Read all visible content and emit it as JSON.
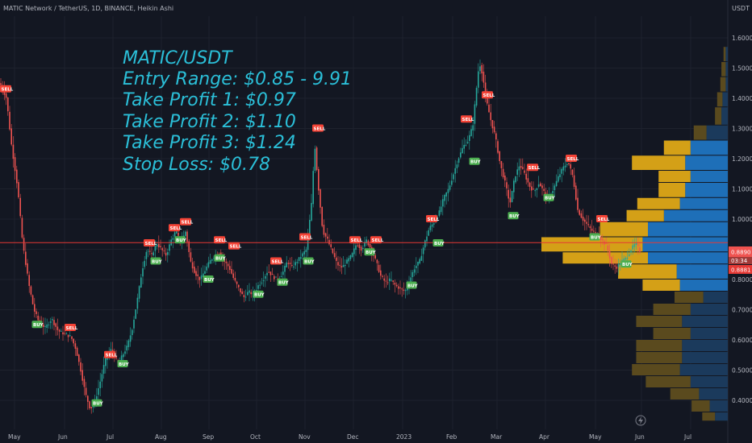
{
  "header": {
    "symbol": "MATIC Network / TetherUS, 1D, BINANCE, Heikin Ashi",
    "currency": "USDT"
  },
  "annotation": [
    "MATIC/USDT",
    "Entry Range: $0.85 - 9.91",
    "Take Profit 1: $0.97",
    "Take Profit 2: $1.10",
    "Take Profit 3: $1.24",
    "Stop Loss: $0.78"
  ],
  "price_labels": {
    "current": "0.8890",
    "countdown": "03:34",
    "line": "0.8881"
  },
  "colors": {
    "background": "#131722",
    "up": "#26a69a",
    "down": "#ef5350",
    "buy": "#4caf50",
    "sell": "#f44336",
    "annotation": "#2bbfd8",
    "vp_bright_orange": "#d4a017",
    "vp_bright_blue": "#1e6fb8",
    "vp_dim_orange": "#5a4a1e",
    "vp_dim_blue": "#1b3a5c",
    "hline": "#e53935"
  },
  "chart_data": {
    "type": "candlestick",
    "title": "MATIC Network / TetherUS, 1D, BINANCE, Heikin Ashi",
    "ylabel": "USDT",
    "ylim": [
      0.33,
      1.62
    ],
    "y_ticks": [
      "0.4000",
      "0.5000",
      "0.6000",
      "0.7000",
      "0.8000",
      "0.9000",
      "1.0000",
      "1.1000",
      "1.2000",
      "1.3000",
      "1.4000",
      "1.5000",
      "1.6000"
    ],
    "x_ticks": [
      "May",
      "Jun",
      "Jul",
      "Aug",
      "Sep",
      "Oct",
      "Nov",
      "Dec",
      "2023",
      "Feb",
      "Mar",
      "Apr",
      "May",
      "Jun",
      "Jul"
    ],
    "horizontal_line": 0.922,
    "path": [
      [
        0,
        1.45
      ],
      [
        8,
        1.4
      ],
      [
        14,
        1.25
      ],
      [
        22,
        1.1
      ],
      [
        28,
        0.92
      ],
      [
        36,
        0.78
      ],
      [
        42,
        0.7
      ],
      [
        48,
        0.66
      ],
      [
        56,
        0.64
      ],
      [
        64,
        0.67
      ],
      [
        72,
        0.63
      ],
      [
        80,
        0.62
      ],
      [
        88,
        0.61
      ],
      [
        94,
        0.57
      ],
      [
        100,
        0.5
      ],
      [
        106,
        0.42
      ],
      [
        112,
        0.37
      ],
      [
        118,
        0.4
      ],
      [
        124,
        0.46
      ],
      [
        130,
        0.53
      ],
      [
        138,
        0.57
      ],
      [
        146,
        0.52
      ],
      [
        152,
        0.55
      ],
      [
        158,
        0.58
      ],
      [
        164,
        0.64
      ],
      [
        170,
        0.73
      ],
      [
        176,
        0.83
      ],
      [
        182,
        0.9
      ],
      [
        188,
        0.88
      ],
      [
        194,
        0.92
      ],
      [
        200,
        0.9
      ],
      [
        206,
        0.88
      ],
      [
        212,
        0.93
      ],
      [
        218,
        0.96
      ],
      [
        224,
        0.92
      ],
      [
        230,
        0.96
      ],
      [
        236,
        0.86
      ],
      [
        242,
        0.82
      ],
      [
        248,
        0.8
      ],
      [
        254,
        0.83
      ],
      [
        260,
        0.86
      ],
      [
        266,
        0.88
      ],
      [
        272,
        0.89
      ],
      [
        278,
        0.86
      ],
      [
        284,
        0.84
      ],
      [
        290,
        0.8
      ],
      [
        296,
        0.77
      ],
      [
        302,
        0.74
      ],
      [
        308,
        0.76
      ],
      [
        314,
        0.75
      ],
      [
        320,
        0.78
      ],
      [
        326,
        0.8
      ],
      [
        332,
        0.83
      ],
      [
        338,
        0.81
      ],
      [
        344,
        0.8
      ],
      [
        350,
        0.82
      ],
      [
        356,
        0.86
      ],
      [
        362,
        0.84
      ],
      [
        368,
        0.86
      ],
      [
        374,
        0.88
      ],
      [
        380,
        0.9
      ],
      [
        386,
        1.05
      ],
      [
        390,
        1.25
      ],
      [
        394,
        1.12
      ],
      [
        400,
        0.96
      ],
      [
        406,
        0.93
      ],
      [
        412,
        0.89
      ],
      [
        418,
        0.85
      ],
      [
        424,
        0.84
      ],
      [
        430,
        0.86
      ],
      [
        436,
        0.88
      ],
      [
        442,
        0.92
      ],
      [
        448,
        0.9
      ],
      [
        454,
        0.93
      ],
      [
        460,
        0.9
      ],
      [
        466,
        0.86
      ],
      [
        472,
        0.81
      ],
      [
        478,
        0.79
      ],
      [
        484,
        0.8
      ],
      [
        490,
        0.78
      ],
      [
        496,
        0.77
      ],
      [
        502,
        0.76
      ],
      [
        508,
        0.8
      ],
      [
        514,
        0.84
      ],
      [
        520,
        0.86
      ],
      [
        526,
        0.92
      ],
      [
        532,
        0.97
      ],
      [
        538,
        0.99
      ],
      [
        544,
        1.02
      ],
      [
        550,
        1.07
      ],
      [
        556,
        1.1
      ],
      [
        562,
        1.15
      ],
      [
        568,
        1.2
      ],
      [
        574,
        1.24
      ],
      [
        580,
        1.26
      ],
      [
        586,
        1.31
      ],
      [
        590,
        1.42
      ],
      [
        594,
        1.52
      ],
      [
        598,
        1.48
      ],
      [
        602,
        1.4
      ],
      [
        608,
        1.33
      ],
      [
        614,
        1.27
      ],
      [
        620,
        1.18
      ],
      [
        626,
        1.12
      ],
      [
        632,
        1.05
      ],
      [
        638,
        1.14
      ],
      [
        644,
        1.18
      ],
      [
        650,
        1.15
      ],
      [
        656,
        1.11
      ],
      [
        662,
        1.09
      ],
      [
        668,
        1.12
      ],
      [
        674,
        1.09
      ],
      [
        680,
        1.07
      ],
      [
        686,
        1.1
      ],
      [
        692,
        1.14
      ],
      [
        698,
        1.17
      ],
      [
        704,
        1.19
      ],
      [
        710,
        1.14
      ],
      [
        716,
        1.03
      ],
      [
        722,
        1.0
      ],
      [
        728,
        0.98
      ],
      [
        734,
        0.96
      ],
      [
        740,
        0.95
      ],
      [
        746,
        0.93
      ],
      [
        752,
        0.91
      ],
      [
        758,
        0.85
      ],
      [
        764,
        0.84
      ],
      [
        770,
        0.86
      ],
      [
        776,
        0.87
      ],
      [
        782,
        0.9
      ],
      [
        788,
        0.92
      ],
      [
        794,
        0.89
      ]
    ],
    "signals": [
      {
        "label": "SELL",
        "x": 4,
        "y": 1.43
      },
      {
        "label": "BUY",
        "x": 46,
        "y": 0.65
      },
      {
        "label": "SELL",
        "x": 87,
        "y": 0.64
      },
      {
        "label": "SELL",
        "x": 136,
        "y": 0.55
      },
      {
        "label": "BUY",
        "x": 120,
        "y": 0.39
      },
      {
        "label": "BUY",
        "x": 152,
        "y": 0.52
      },
      {
        "label": "BUY",
        "x": 193,
        "y": 0.86
      },
      {
        "label": "SELL",
        "x": 185,
        "y": 0.92
      },
      {
        "label": "SELL",
        "x": 216,
        "y": 0.97
      },
      {
        "label": "SELL",
        "x": 230,
        "y": 0.99
      },
      {
        "label": "BUY",
        "x": 223,
        "y": 0.93
      },
      {
        "label": "BUY",
        "x": 258,
        "y": 0.8
      },
      {
        "label": "SELL",
        "x": 272,
        "y": 0.93
      },
      {
        "label": "SELL",
        "x": 290,
        "y": 0.91
      },
      {
        "label": "BUY",
        "x": 272,
        "y": 0.87
      },
      {
        "label": "BUY",
        "x": 320,
        "y": 0.75
      },
      {
        "label": "SELL",
        "x": 342,
        "y": 0.86
      },
      {
        "label": "BUY",
        "x": 350,
        "y": 0.79
      },
      {
        "label": "BUY",
        "x": 382,
        "y": 0.86
      },
      {
        "label": "SELL",
        "x": 378,
        "y": 0.94
      },
      {
        "label": "SELL",
        "x": 394,
        "y": 1.3
      },
      {
        "label": "SELL",
        "x": 440,
        "y": 0.93
      },
      {
        "label": "SELL",
        "x": 466,
        "y": 0.93
      },
      {
        "label": "BUY",
        "x": 458,
        "y": 0.89
      },
      {
        "label": "BUY",
        "x": 510,
        "y": 0.78
      },
      {
        "label": "SELL",
        "x": 535,
        "y": 1.0
      },
      {
        "label": "BUY",
        "x": 543,
        "y": 0.92
      },
      {
        "label": "SELL",
        "x": 578,
        "y": 1.33
      },
      {
        "label": "BUY",
        "x": 588,
        "y": 1.19
      },
      {
        "label": "SELL",
        "x": 604,
        "y": 1.41
      },
      {
        "label": "BUY",
        "x": 636,
        "y": 1.01
      },
      {
        "label": "SELL",
        "x": 660,
        "y": 1.17
      },
      {
        "label": "BUY",
        "x": 680,
        "y": 1.07
      },
      {
        "label": "SELL",
        "x": 708,
        "y": 1.2
      },
      {
        "label": "SELL",
        "x": 746,
        "y": 1.0
      },
      {
        "label": "BUY",
        "x": 737,
        "y": 0.94
      },
      {
        "label": "BUY",
        "x": 776,
        "y": 0.85
      }
    ],
    "volume_profile": [
      {
        "lo": 0.33,
        "hi": 0.36,
        "a": 0.12,
        "b": 0.12,
        "dim": true
      },
      {
        "lo": 0.36,
        "hi": 0.4,
        "a": 0.17,
        "b": 0.17,
        "dim": true
      },
      {
        "lo": 0.4,
        "hi": 0.44,
        "a": 0.27,
        "b": 0.27,
        "dim": true
      },
      {
        "lo": 0.44,
        "hi": 0.48,
        "a": 0.42,
        "b": 0.35,
        "dim": true
      },
      {
        "lo": 0.48,
        "hi": 0.52,
        "a": 0.45,
        "b": 0.45,
        "dim": true
      },
      {
        "lo": 0.52,
        "hi": 0.56,
        "a": 0.43,
        "b": 0.43,
        "dim": true
      },
      {
        "lo": 0.56,
        "hi": 0.6,
        "a": 0.43,
        "b": 0.43,
        "dim": true
      },
      {
        "lo": 0.6,
        "hi": 0.64,
        "a": 0.35,
        "b": 0.35,
        "dim": true
      },
      {
        "lo": 0.64,
        "hi": 0.68,
        "a": 0.43,
        "b": 0.43,
        "dim": true
      },
      {
        "lo": 0.68,
        "hi": 0.72,
        "a": 0.35,
        "b": 0.35,
        "dim": true
      },
      {
        "lo": 0.72,
        "hi": 0.76,
        "a": 0.27,
        "b": 0.23,
        "dim": true
      },
      {
        "lo": 0.76,
        "hi": 0.8,
        "a": 0.35,
        "b": 0.45,
        "dim": false
      },
      {
        "lo": 0.8,
        "hi": 0.85,
        "a": 0.55,
        "b": 0.48,
        "dim": false
      },
      {
        "lo": 0.85,
        "hi": 0.89,
        "a": 0.8,
        "b": 0.75,
        "dim": false
      },
      {
        "lo": 0.89,
        "hi": 0.94,
        "a": 0.95,
        "b": 0.8,
        "dim": false
      },
      {
        "lo": 0.94,
        "hi": 0.99,
        "a": 0.45,
        "b": 0.75,
        "dim": false
      },
      {
        "lo": 0.99,
        "hi": 1.03,
        "a": 0.35,
        "b": 0.6,
        "dim": false
      },
      {
        "lo": 1.03,
        "hi": 1.07,
        "a": 0.4,
        "b": 0.45,
        "dim": false
      },
      {
        "lo": 1.07,
        "hi": 1.12,
        "a": 0.25,
        "b": 0.4,
        "dim": false
      },
      {
        "lo": 1.12,
        "hi": 1.16,
        "a": 0.3,
        "b": 0.35,
        "dim": false
      },
      {
        "lo": 1.16,
        "hi": 1.21,
        "a": 0.5,
        "b": 0.4,
        "dim": false
      },
      {
        "lo": 1.21,
        "hi": 1.26,
        "a": 0.25,
        "b": 0.35,
        "dim": false
      },
      {
        "lo": 1.26,
        "hi": 1.31,
        "a": 0.12,
        "b": 0.2,
        "dim": true
      },
      {
        "lo": 1.31,
        "hi": 1.37,
        "a": 0.06,
        "b": 0.06,
        "dim": true
      },
      {
        "lo": 1.37,
        "hi": 1.42,
        "a": 0.05,
        "b": 0.05,
        "dim": true
      },
      {
        "lo": 1.42,
        "hi": 1.47,
        "a": 0.05,
        "b": 0.02,
        "dim": true
      },
      {
        "lo": 1.47,
        "hi": 1.52,
        "a": 0.04,
        "b": 0.02,
        "dim": true
      },
      {
        "lo": 1.52,
        "hi": 1.57,
        "a": 0.02,
        "b": 0.02,
        "dim": true
      }
    ]
  }
}
